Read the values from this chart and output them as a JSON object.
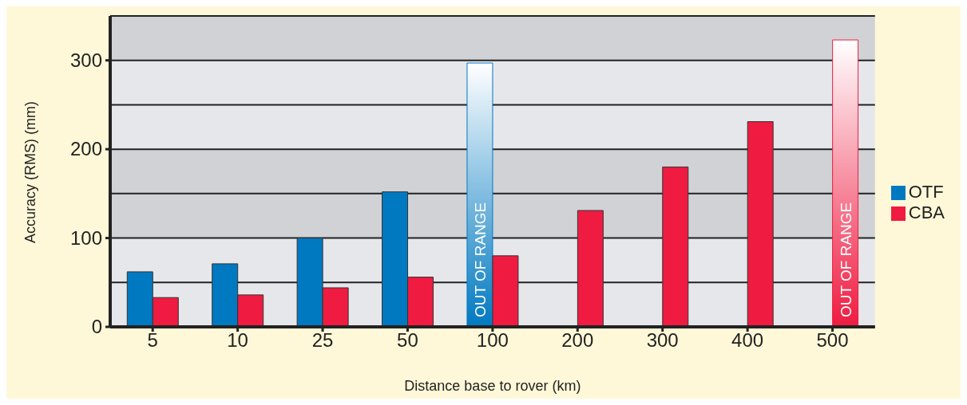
{
  "chart_data": {
    "type": "bar",
    "xlabel": "Distance base to rover (km)",
    "ylabel": "Accuracy (RMS) (mm)",
    "categories": [
      "5",
      "10",
      "25",
      "50",
      "100",
      "200",
      "300",
      "400",
      "500"
    ],
    "series": [
      {
        "name": "OTF",
        "color": "#0079c1",
        "values": [
          62,
          71,
          100,
          152,
          297,
          null,
          null,
          null,
          null
        ],
        "value_labels": [
          null,
          null,
          null,
          null,
          "OUT OF RANGE",
          null,
          null,
          null,
          null
        ]
      },
      {
        "name": "CBA",
        "color": "#ef1b41",
        "values": [
          33,
          36,
          44,
          56,
          80,
          131,
          180,
          231,
          323
        ],
        "value_labels": [
          null,
          null,
          null,
          null,
          null,
          null,
          null,
          null,
          "OUT OF RANGE"
        ]
      }
    ],
    "ylim": [
      0,
      350
    ],
    "yticks": [
      0,
      {
        "value": 50,
        "label": null
      },
      100,
      {
        "value": 150,
        "label": null
      },
      200,
      {
        "value": 250,
        "label": null
      },
      300
    ],
    "grid": "y",
    "legend": "right"
  }
}
